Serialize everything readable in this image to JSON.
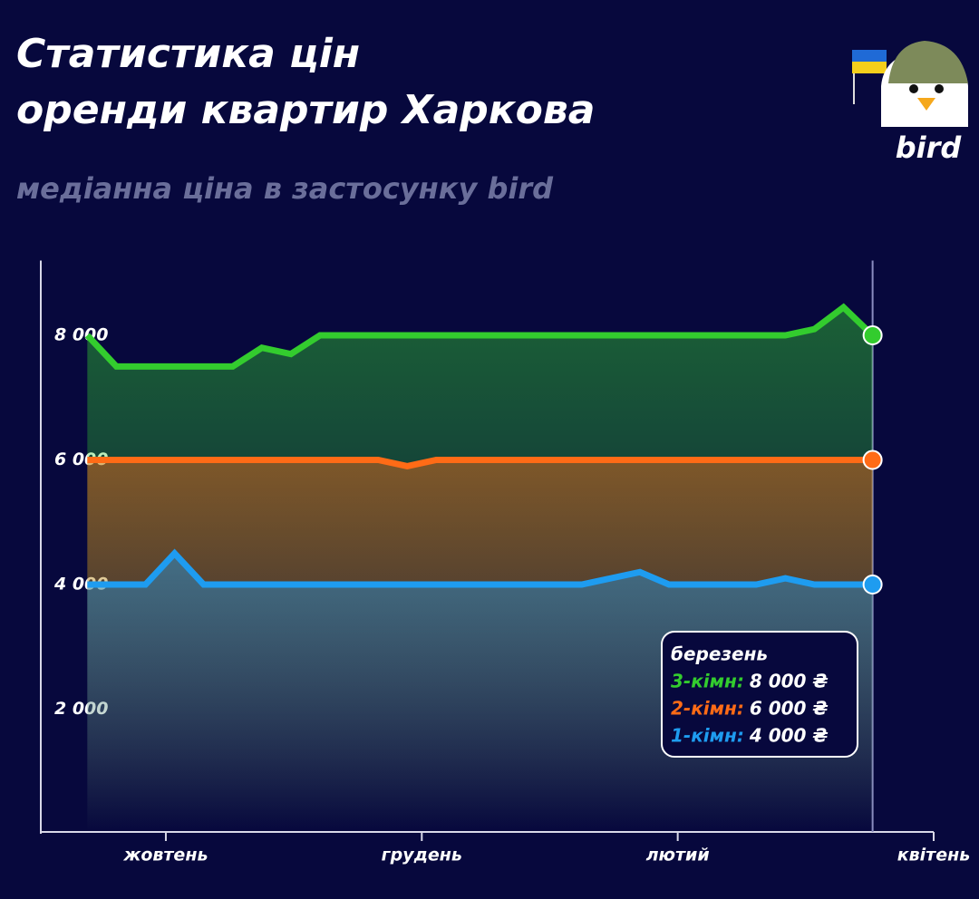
{
  "chart_data": {
    "type": "line",
    "title": [
      "Статистика цін",
      "оренди квартир Харкова"
    ],
    "subtitle": "медіанна ціна в застосунку bird",
    "logo": "bird",
    "x": [
      0,
      1,
      2,
      3,
      4,
      5,
      6,
      7,
      8,
      9,
      10,
      11,
      12,
      13,
      14,
      15,
      16,
      17,
      18,
      19,
      20,
      21,
      22,
      23,
      24,
      25,
      26,
      27
    ],
    "xlim": [
      -1.6,
      29.1
    ],
    "xticks": [
      {
        "value": 2.7,
        "label": "жовтень"
      },
      {
        "value": 11.5,
        "label": "грудень"
      },
      {
        "value": 20.3,
        "label": "лютий"
      },
      {
        "value": 29.1,
        "label": "квітень"
      }
    ],
    "ylim": [
      0,
      9200
    ],
    "yticks": [
      {
        "value": 2000,
        "label": "2 000"
      },
      {
        "value": 4000,
        "label": "4 000"
      },
      {
        "value": 6000,
        "label": "6 000"
      },
      {
        "value": 8000,
        "label": "8 000"
      }
    ],
    "series": [
      {
        "name": "3-кімн:",
        "color": "#33cc2e",
        "values": [
          8000,
          7500,
          7500,
          7500,
          7500,
          7500,
          7800,
          7700,
          8000,
          8000,
          8000,
          8000,
          8000,
          8000,
          8000,
          8000,
          8000,
          8000,
          8000,
          8000,
          8000,
          8000,
          8000,
          8000,
          8000,
          8100,
          8450,
          8000
        ]
      },
      {
        "name": "2-кімн:",
        "color": "#ff6b16",
        "values": [
          6000,
          6000,
          6000,
          6000,
          6000,
          6000,
          6000,
          6000,
          6000,
          6000,
          6000,
          5900,
          6000,
          6000,
          6000,
          6000,
          6000,
          6000,
          6000,
          6000,
          6000,
          6000,
          6000,
          6000,
          6000,
          6000,
          6000,
          6000
        ]
      },
      {
        "name": "1-кімн:",
        "color": "#1e9cf0",
        "values": [
          4000,
          4000,
          4000,
          4500,
          4000,
          4000,
          4000,
          4000,
          4000,
          4000,
          4000,
          4000,
          4000,
          4000,
          4000,
          4000,
          4000,
          4000,
          4100,
          4200,
          4000,
          4000,
          4000,
          4000,
          4100,
          4000,
          4000,
          4000
        ]
      }
    ],
    "tooltip": {
      "title": "березень",
      "values": [
        "8 000 ₴",
        "6 000 ₴",
        "4 000 ₴"
      ]
    }
  }
}
